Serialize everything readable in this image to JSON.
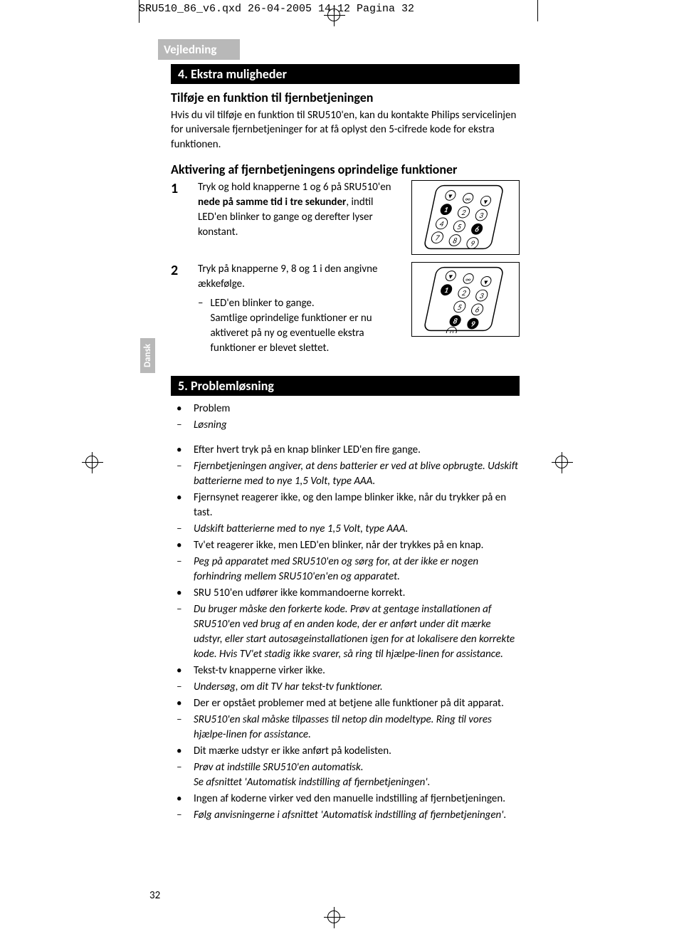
{
  "header": "SRU510_86_v6.qxd  26-04-2005  14:12  Pagina 32",
  "tab_label": "Vejledning",
  "side_tab": "Dansk",
  "page_number": "32",
  "section4": {
    "heading": "4. Ekstra muligheder",
    "sub1": "Tilføje en funktion til fjernbetjeningen",
    "para1": "Hvis du vil tilføje en funktion til SRU510'en, kan du kontakte Philips servicelinjen for universale fjernbetjeninger for at få oplyst den 5-cifrede kode for ekstra funktionen.",
    "sub2": "Aktivering af fjernbetjeningens oprindelige funktioner",
    "step1_num": "1",
    "step1_a": "Tryk og hold knapperne 1 og 6 på SRU510'en ",
    "step1_bold": "nede på samme tid i tre sekunder",
    "step1_b": ", indtil LED'en blinker to gange og derefter lyser konstant.",
    "step2_num": "2",
    "step2_a": "Tryk på knapperne 9, 8 og 1 i den angivne ækkefølge.",
    "step2_dash": "–",
    "step2_b": "LED'en blinker to gange.",
    "step2_c": "Samtlige oprindelige funktioner er nu aktiveret på ny og eventuelle ekstra funktioner er blevet slettet.",
    "remote1_highlight": [
      "1",
      "6"
    ],
    "remote2_highlight": [
      "1",
      "8",
      "9"
    ]
  },
  "section5": {
    "heading": "5. Problemløsning",
    "items": [
      {
        "b": "•",
        "t": "Problem",
        "cls": ""
      },
      {
        "b": "–",
        "t": "Løsning",
        "cls": "italic"
      },
      {
        "b": "",
        "t": "",
        "cls": "spacer"
      },
      {
        "b": "•",
        "t": "Efter hvert tryk på en knap blinker LED'en fire gange.",
        "cls": ""
      },
      {
        "b": "–",
        "t": "Fjernbetjeningen angiver, at dens batterier er ved at blive opbrugte. Udskift batterierne med to nye 1,5 Volt, type AAA.",
        "cls": "italic"
      },
      {
        "b": "•",
        "t": "Fjernsynet reagerer ikke, og den lampe blinker ikke, når du trykker på en tast.",
        "cls": ""
      },
      {
        "b": "–",
        "t": "Udskift batterierne med to nye 1,5 Volt, type AAA.",
        "cls": "italic"
      },
      {
        "b": "•",
        "t": "Tv'et reagerer ikke, men LED'en blinker, når der trykkes på en knap.",
        "cls": ""
      },
      {
        "b": "–",
        "t": "Peg på apparatet med SRU510'en og sørg for, at der ikke er nogen forhindring mellem SRU510'en'en og apparatet.",
        "cls": "italic"
      },
      {
        "b": "•",
        "t": "SRU 510'en udfører ikke kommandoerne korrekt.",
        "cls": ""
      },
      {
        "b": "–",
        "t": "Du bruger måske den forkerte kode. Prøv at gentage installationen af SRU510'en ved brug af en anden kode, der er anført under dit mærke udstyr, eller start autosøgeinstallationen igen for at lokalisere den korrekte kode. Hvis TV'et stadig ikke svarer, så ring til hjælpe-linen for assistance.",
        "cls": "italic"
      },
      {
        "b": "•",
        "t": "Tekst-tv knapperne virker ikke.",
        "cls": ""
      },
      {
        "b": "–",
        "t": "Undersøg, om dit TV har tekst-tv funktioner.",
        "cls": "italic"
      },
      {
        "b": "•",
        "t": "Der er opstået problemer med at betjene alle funktioner på dit apparat.",
        "cls": ""
      },
      {
        "b": "–",
        "t": "SRU510'en skal måske tilpasses til netop din modeltype. Ring til vores hjælpe-linen for assistance.",
        "cls": "italic"
      },
      {
        "b": "•",
        "t": "Dit mærke udstyr er ikke anført på kodelisten.",
        "cls": ""
      },
      {
        "b": "–",
        "t": "Prøv at indstille SRU510'en automatisk.\nSe afsnittet 'Automatisk indstilling af fjernbetjeningen'.",
        "cls": "italic"
      },
      {
        "b": "•",
        "t": "Ingen af koderne virker ved den manuelle indstilling af fjernbetjeningen.",
        "cls": ""
      },
      {
        "b": "–",
        "t": "Følg anvisningerne i afsnittet 'Automatisk indstilling af fjernbetjeningen'.",
        "cls": "italic"
      }
    ]
  },
  "colors": {
    "tab_bg": "#b8b8b8",
    "heading_bg": "#000000",
    "heading_fg": "#ffffff",
    "text": "#000000"
  }
}
